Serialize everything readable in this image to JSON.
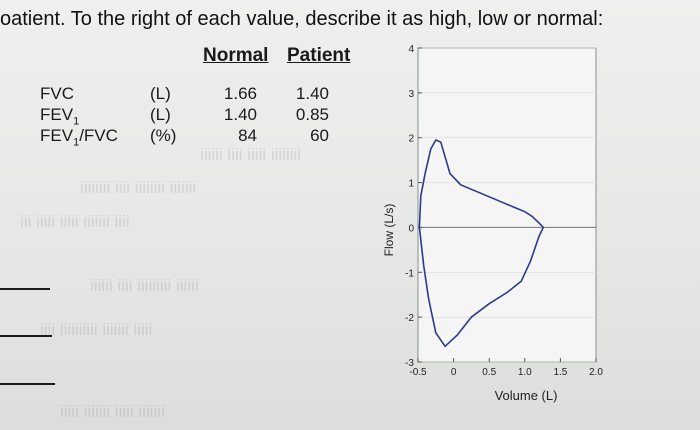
{
  "worksheet": {
    "instruction": "oatient. To the right of each value, describe it as high, low or normal:",
    "headers": {
      "normal": "Normal",
      "patient": "Patient"
    },
    "rows": [
      {
        "label": "FVC",
        "sub": "",
        "tail": "",
        "unit": "(L)",
        "normal": "1.66",
        "patient": "1.40"
      },
      {
        "label": "FEV",
        "sub": "1",
        "tail": "",
        "unit": "(L)",
        "normal": "1.40",
        "patient": "0.85"
      },
      {
        "label": "FEV",
        "sub": "1",
        "tail": "/FVC",
        "unit": "(%)",
        "normal": "84",
        "patient": "60"
      }
    ]
  },
  "chart_data": {
    "type": "line",
    "xlabel": "Volume (L)",
    "ylabel": "Flow (L/s)",
    "xlim": [
      -0.5,
      2.0
    ],
    "ylim": [
      -3,
      4
    ],
    "xticks": [
      {
        "v": -0.5,
        "t": "-0.5"
      },
      {
        "v": 0,
        "t": "0"
      },
      {
        "v": 0.5,
        "t": "0.5"
      },
      {
        "v": 1.0,
        "t": "1.0"
      },
      {
        "v": 1.5,
        "t": "1.5"
      },
      {
        "v": 2.0,
        "t": "2.0"
      }
    ],
    "yticks": [
      {
        "v": 4,
        "t": "4"
      },
      {
        "v": 3,
        "t": "3"
      },
      {
        "v": 2,
        "t": "2"
      },
      {
        "v": 1,
        "t": "1"
      },
      {
        "v": 0,
        "t": "0"
      },
      {
        "v": -1,
        "t": "-1"
      },
      {
        "v": -2,
        "t": "-2"
      },
      {
        "v": -3,
        "t": "-3"
      }
    ],
    "series": [
      {
        "points": [
          [
            -0.48,
            0.0
          ],
          [
            -0.46,
            0.7
          ],
          [
            -0.4,
            1.2
          ],
          [
            -0.32,
            1.75
          ],
          [
            -0.25,
            1.95
          ],
          [
            -0.18,
            1.9
          ],
          [
            -0.05,
            1.2
          ],
          [
            0.1,
            0.95
          ],
          [
            0.25,
            0.85
          ],
          [
            0.4,
            0.75
          ],
          [
            0.55,
            0.65
          ],
          [
            0.7,
            0.55
          ],
          [
            0.85,
            0.45
          ],
          [
            1.0,
            0.35
          ],
          [
            1.1,
            0.25
          ],
          [
            1.2,
            0.1
          ],
          [
            1.26,
            0.0
          ],
          [
            1.2,
            -0.2
          ],
          [
            1.08,
            -0.75
          ],
          [
            0.95,
            -1.2
          ],
          [
            0.75,
            -1.45
          ],
          [
            0.5,
            -1.7
          ],
          [
            0.25,
            -2.0
          ],
          [
            0.05,
            -2.4
          ],
          [
            -0.12,
            -2.65
          ],
          [
            -0.25,
            -2.35
          ],
          [
            -0.35,
            -1.6
          ],
          [
            -0.42,
            -0.85
          ],
          [
            -0.48,
            0.0
          ]
        ]
      }
    ]
  }
}
